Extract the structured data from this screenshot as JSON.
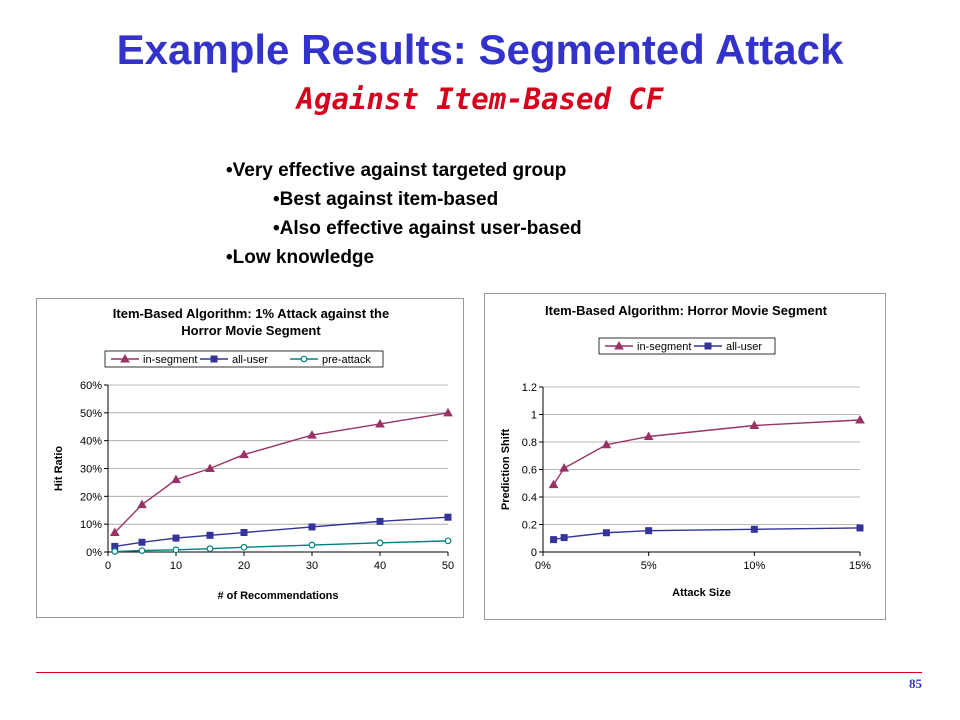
{
  "slide": {
    "title": "Example Results: Segmented Attack",
    "subtitle": "Against Item-Based CF",
    "page_number": "85",
    "bullets": [
      {
        "text": "Very effective against targeted group",
        "level": 1
      },
      {
        "text": "Best against item-based",
        "level": 2
      },
      {
        "text": "Also effective against user-based",
        "level": 2
      },
      {
        "text": "Low knowledge",
        "level": 1
      }
    ]
  },
  "chart_data": [
    {
      "type": "line",
      "title": [
        "Item-Based Algorithm: 1% Attack against the",
        "Horror Movie Segment"
      ],
      "xlabel": "# of Recommendations",
      "ylabel": "Hit Ratio",
      "xlim": [
        0,
        50
      ],
      "ylim": [
        0,
        0.6
      ],
      "x_ticks": [
        0,
        10,
        20,
        30,
        40,
        50
      ],
      "x_tick_labels": [
        "0",
        "10",
        "20",
        "30",
        "40",
        "50"
      ],
      "y_ticks": [
        0,
        0.1,
        0.2,
        0.3,
        0.4,
        0.5,
        0.6
      ],
      "y_tick_labels": [
        "0%",
        "10%",
        "20%",
        "30%",
        "40%",
        "50%",
        "60%"
      ],
      "grid": "horizontal",
      "legend_position": "top",
      "x": [
        1,
        5,
        10,
        15,
        20,
        30,
        40,
        50
      ],
      "series": [
        {
          "name": "in-segment",
          "color": "#993366",
          "marker": "triangle",
          "values": [
            0.07,
            0.17,
            0.26,
            0.3,
            0.35,
            0.42,
            0.46,
            0.5
          ]
        },
        {
          "name": "all-user",
          "color": "#333399",
          "marker": "square",
          "values": [
            0.02,
            0.035,
            0.05,
            0.06,
            0.07,
            0.09,
            0.11,
            0.125
          ]
        },
        {
          "name": "pre-attack",
          "color": "#008080",
          "marker": "circle",
          "values": [
            0.002,
            0.005,
            0.008,
            0.012,
            0.017,
            0.025,
            0.033,
            0.04
          ]
        }
      ]
    },
    {
      "type": "line",
      "title": [
        "Item-Based Algorithm: Horror Movie Segment"
      ],
      "xlabel": "Attack Size",
      "ylabel": "Prediction Shift",
      "xlim": [
        0,
        0.15
      ],
      "ylim": [
        0,
        1.2
      ],
      "x_ticks": [
        0,
        0.05,
        0.1,
        0.15
      ],
      "x_tick_labels": [
        "0%",
        "5%",
        "10%",
        "15%"
      ],
      "y_ticks": [
        0,
        0.2,
        0.4,
        0.6,
        0.8,
        1.0,
        1.2
      ],
      "y_tick_labels": [
        "0",
        "0.2",
        "0.4",
        "0.6",
        "0.8",
        "1",
        "1.2"
      ],
      "grid": "horizontal",
      "legend_position": "top",
      "x": [
        0.005,
        0.01,
        0.03,
        0.05,
        0.1,
        0.15
      ],
      "series": [
        {
          "name": "in-segment",
          "color": "#993366",
          "marker": "triangle",
          "values": [
            0.49,
            0.61,
            0.78,
            0.84,
            0.92,
            0.96
          ]
        },
        {
          "name": "all-user",
          "color": "#333399",
          "marker": "square",
          "values": [
            0.09,
            0.105,
            0.14,
            0.155,
            0.165,
            0.175
          ]
        }
      ]
    }
  ]
}
